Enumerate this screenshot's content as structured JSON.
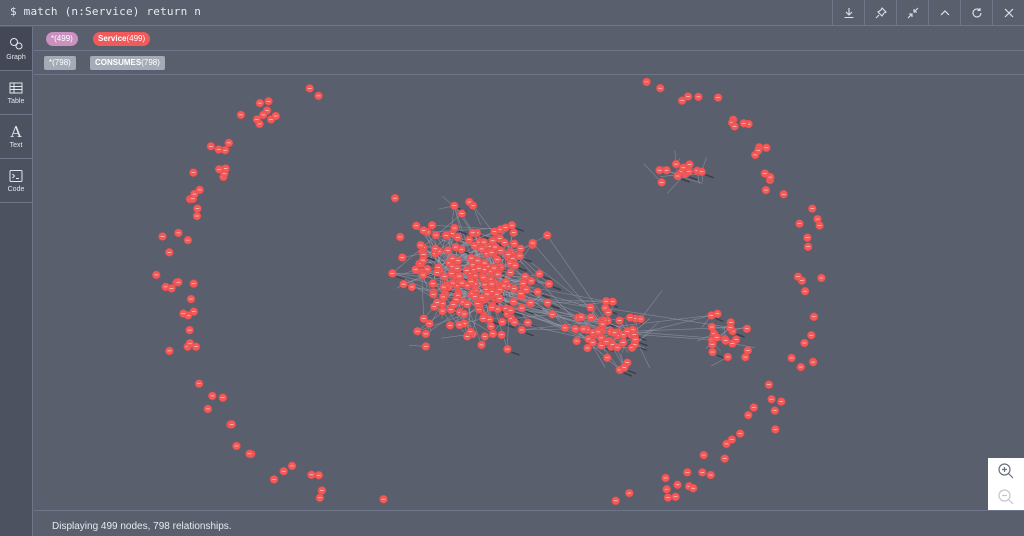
{
  "query": {
    "text": "$ match (n:Service) return n"
  },
  "toolbar": {
    "buttons": [
      {
        "icon": "download-icon"
      },
      {
        "icon": "pin-icon"
      },
      {
        "icon": "collapse-icon"
      },
      {
        "icon": "chevron-up-icon"
      },
      {
        "icon": "refresh-icon"
      },
      {
        "icon": "close-icon"
      }
    ]
  },
  "sidebar": {
    "items": [
      {
        "label": "Graph",
        "icon": "graph-icon",
        "active": true
      },
      {
        "label": "Table",
        "icon": "table-icon",
        "active": false
      },
      {
        "label": "Text",
        "icon": "text-icon",
        "active": false
      },
      {
        "label": "Code",
        "icon": "code-icon",
        "active": false
      }
    ]
  },
  "legend": {
    "nodes": [
      {
        "label": "*",
        "count": "(499)",
        "color": "#c990c0"
      },
      {
        "label": "Service",
        "count": "(499)",
        "color": "#f25a59"
      }
    ],
    "relationships": [
      {
        "label": "*",
        "count": "(798)",
        "color": "#a5abb6"
      },
      {
        "label": "CONSUMES",
        "count": "(798)",
        "color": "#a5abb6"
      }
    ]
  },
  "graph": {
    "node_color": "#f25a59",
    "node_label_color": "#ffffff",
    "edge_color": "#9aa0ad",
    "node_count": 499,
    "relationship_count": 798
  },
  "status": {
    "text": "Displaying 499 nodes, 798 relationships."
  },
  "zoom": {
    "in_icon": "zoom-in-icon",
    "out_icon": "zoom-out-icon"
  }
}
